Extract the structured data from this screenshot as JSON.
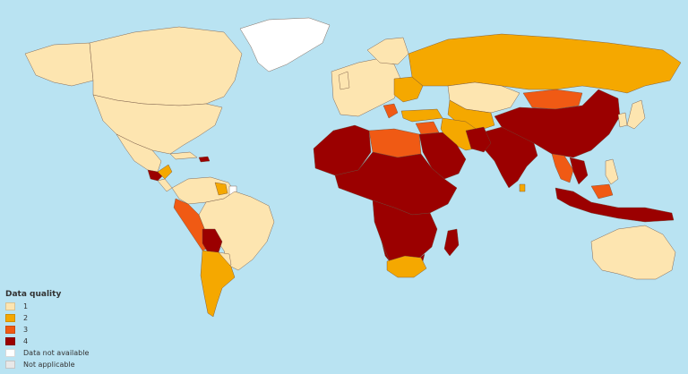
{
  "colors": {
    "ocean": "#b9e3f2",
    "quality_1": "#fde5b0",
    "quality_2": "#f5a800",
    "quality_3": "#f05a14",
    "quality_4": "#9b0000",
    "not_available": "#ffffff",
    "not_applicable": "#e8e8e8"
  },
  "legend": {
    "title": "Data quality",
    "items": [
      {
        "label": "1",
        "color": "#fde5b0"
      },
      {
        "label": "2",
        "color": "#f5a800"
      },
      {
        "label": "3",
        "color": "#f05a14"
      },
      {
        "label": "4",
        "color": "#9b0000"
      },
      {
        "label": "Data not available",
        "color": "#ffffff"
      },
      {
        "label": "Not applicable",
        "color": "#e8e8e8"
      }
    ]
  }
}
